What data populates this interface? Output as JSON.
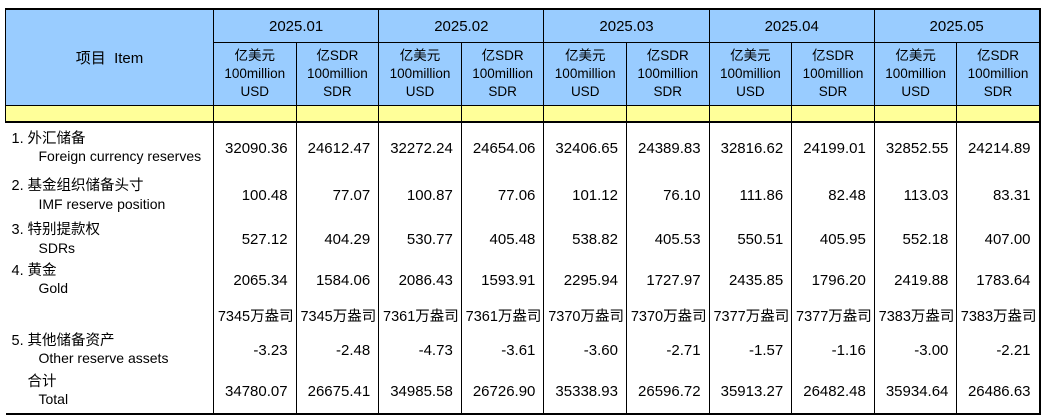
{
  "table": {
    "colors": {
      "header_blue": "#99CCFF",
      "highlight_yellow": "#FFFF99",
      "border": "#000000",
      "text": "#000000"
    },
    "header": {
      "item": "项目  Item",
      "months": [
        "2025.01",
        "2025.02",
        "2025.03",
        "2025.04",
        "2025.05"
      ],
      "unit_usd": [
        "亿美元",
        "100million",
        "USD"
      ],
      "unit_sdr": [
        "亿SDR",
        "100million",
        "SDR"
      ]
    },
    "rows": [
      {
        "num": "1.",
        "zh": "外汇储备",
        "en": "Foreign currency reserves",
        "kind": "data",
        "values": [
          "32090.36",
          "24612.47",
          "32272.24",
          "24654.06",
          "32406.65",
          "24389.83",
          "32816.62",
          "24199.01",
          "32852.55",
          "24214.89"
        ]
      },
      {
        "num": "2.",
        "zh": "基金组织储备头寸",
        "en": "IMF reserve position",
        "kind": "data",
        "values": [
          "100.48",
          "77.07",
          "100.87",
          "77.06",
          "101.12",
          "76.10",
          "111.86",
          "82.48",
          "113.03",
          "83.31"
        ]
      },
      {
        "num": "3.",
        "zh": "特别提款权",
        "en": "SDRs",
        "kind": "data",
        "values": [
          "527.12",
          "404.29",
          "530.77",
          "405.48",
          "538.82",
          "405.53",
          "550.51",
          "405.95",
          "552.18",
          "407.00"
        ]
      },
      {
        "num": "4.",
        "zh": "黄金",
        "en": "Gold",
        "kind": "data",
        "values": [
          "2065.34",
          "1584.06",
          "2086.43",
          "1593.91",
          "2295.94",
          "1727.97",
          "2435.85",
          "1796.20",
          "2419.88",
          "1783.64"
        ]
      },
      {
        "num": "",
        "zh": "",
        "en": "",
        "kind": "ounces",
        "values": [
          "7345万盎司",
          "7345万盎司",
          "7361万盎司",
          "7361万盎司",
          "7370万盎司",
          "7370万盎司",
          "7377万盎司",
          "7377万盎司",
          "7383万盎司",
          "7383万盎司"
        ]
      },
      {
        "num": "5.",
        "zh": "其他储备资产",
        "en": "Other reserve assets",
        "kind": "data",
        "values": [
          "-3.23",
          "-2.48",
          "-4.73",
          "-3.61",
          "-3.60",
          "-2.71",
          "-1.57",
          "-1.16",
          "-3.00",
          "-2.21"
        ]
      },
      {
        "num": "",
        "zh": "合计",
        "en": "Total",
        "kind": "total",
        "values": [
          "34780.07",
          "26675.41",
          "34985.58",
          "26726.90",
          "35338.93",
          "26596.72",
          "35913.27",
          "26482.48",
          "35934.64",
          "26486.63"
        ]
      }
    ]
  }
}
